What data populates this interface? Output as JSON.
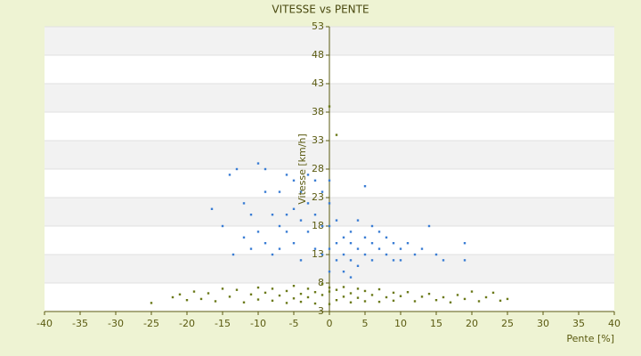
{
  "chart_data": {
    "type": "scatter",
    "title": "VITESSE vs PENTE",
    "x_label": "Pente [%]",
    "y_label": "Vitesse [km/h]",
    "xlim": [
      -40,
      40
    ],
    "xticks": [
      -40,
      -35,
      -30,
      -25,
      -20,
      -15,
      -10,
      -5,
      0,
      5,
      10,
      15,
      20,
      25,
      30,
      35,
      40
    ],
    "ylim": [
      3,
      53
    ],
    "yticks": [
      3,
      8,
      13,
      18,
      23,
      28,
      33,
      38,
      43,
      48,
      53
    ],
    "grid": true,
    "series": [
      {
        "color": "#3a7dd4",
        "x": [
          -15,
          -14,
          -13,
          -12,
          -16.5,
          -13.5,
          -12,
          -10,
          -9,
          -8,
          -9,
          -10,
          -11,
          -7,
          -6,
          -5,
          -5,
          -4,
          -4,
          -6,
          -7,
          -8,
          -3,
          -3,
          -2,
          -2,
          -2,
          -1,
          -1,
          -1,
          -5,
          -4,
          -6,
          -3,
          -9,
          -11,
          -7,
          0,
          0,
          0,
          0,
          0,
          1,
          1,
          2,
          2,
          3,
          3,
          3,
          4,
          4,
          4,
          5,
          5,
          5,
          6,
          6,
          7,
          7,
          8,
          8,
          9,
          9,
          10,
          11,
          12,
          13,
          14,
          15,
          16,
          19,
          19,
          2,
          6,
          10,
          3,
          1
        ],
        "values": [
          18,
          27,
          28,
          22,
          21,
          13,
          16,
          29,
          28,
          20,
          15,
          17,
          14,
          24,
          27,
          26,
          21,
          24,
          19,
          17,
          14,
          13,
          22,
          17,
          26,
          20,
          14,
          24,
          18,
          13,
          15,
          12,
          20,
          27,
          24,
          20,
          18,
          10,
          14,
          18,
          22,
          26,
          15,
          12,
          16,
          13,
          15,
          12,
          17,
          14,
          11,
          19,
          16,
          13,
          25,
          15,
          12,
          17,
          14,
          16,
          13,
          15,
          12,
          14,
          15,
          13,
          14,
          18,
          13,
          12,
          12,
          15,
          10,
          18,
          12,
          9,
          19
        ]
      },
      {
        "color": "#6b7a1a",
        "x": [
          -25,
          -22,
          -21,
          -20,
          -19,
          -18,
          -17,
          -16,
          -15,
          -14,
          -13,
          -12,
          -11,
          -10,
          -10,
          -9,
          -8,
          -8,
          -7,
          -6,
          -6,
          -5,
          -5,
          -4,
          -4,
          -3,
          -3,
          -2,
          -2,
          -1,
          -1,
          0,
          0,
          0,
          1,
          1,
          2,
          2,
          3,
          3,
          4,
          4,
          5,
          5,
          6,
          7,
          7,
          8,
          9,
          9,
          10,
          11,
          12,
          13,
          14,
          15,
          16,
          17,
          18,
          19,
          20,
          21,
          22,
          23,
          24,
          25,
          0,
          1
        ],
        "values": [
          4.5,
          5.5,
          6,
          5,
          6.5,
          5.2,
          6.2,
          4.8,
          7,
          5.6,
          6.8,
          4.6,
          6,
          7.2,
          5.1,
          6.3,
          4.9,
          7,
          5.8,
          6.6,
          4.5,
          7.5,
          5.3,
          6.1,
          4.7,
          7,
          5.5,
          6.4,
          4.4,
          7.8,
          5.9,
          6.5,
          4.3,
          7.2,
          6.8,
          5,
          7.3,
          5.6,
          6.2,
          4.6,
          7,
          5.4,
          6.6,
          4.8,
          5.9,
          6.9,
          4.7,
          5.5,
          6.3,
          4.9,
          5.7,
          6.4,
          4.8,
          5.6,
          6.1,
          5,
          5.5,
          4.6,
          5.9,
          5.2,
          6.5,
          4.8,
          5.5,
          6.3,
          4.9,
          5.2,
          39,
          34
        ]
      }
    ]
  }
}
